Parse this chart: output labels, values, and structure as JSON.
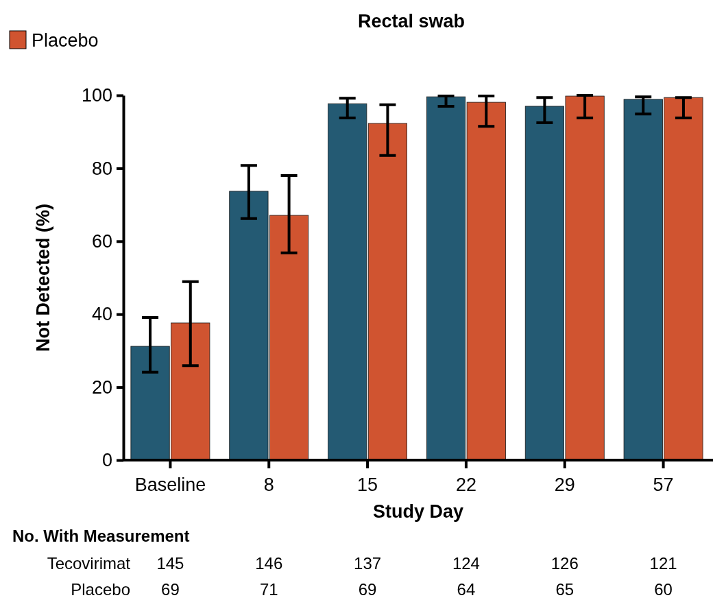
{
  "chart_data": {
    "type": "bar",
    "title": "Rectal swab",
    "xlabel": "Study Day",
    "ylabel": "Not Detected (%)",
    "categories": [
      "Baseline",
      "8",
      "15",
      "22",
      "29",
      "57"
    ],
    "series": [
      {
        "color": "#245a73",
        "values": [
          31.2,
          73.7,
          97.7,
          99.6,
          97.0,
          98.9
        ],
        "errors": [
          [
            24.1,
            39.1
          ],
          [
            66.2,
            80.8
          ],
          [
            93.8,
            99.2
          ],
          [
            97.0,
            99.8
          ],
          [
            92.5,
            99.4
          ],
          [
            94.9,
            99.6
          ]
        ]
      },
      {
        "name": "Placebo",
        "color": "#d05430",
        "values": [
          37.6,
          67.1,
          92.3,
          98.1,
          99.8,
          99.4
        ],
        "errors": [
          [
            25.9,
            48.9
          ],
          [
            56.8,
            78.0
          ],
          [
            83.5,
            97.4
          ],
          [
            91.5,
            99.8
          ],
          [
            93.8,
            100
          ],
          [
            93.8,
            99.4
          ]
        ]
      }
    ],
    "ylim": [
      0,
      100
    ],
    "yticks": [
      0,
      20,
      40,
      60,
      80,
      100
    ],
    "grid": false,
    "legend": "top left",
    "annotations": [
      "No. With Measurement",
      "Tecovirimat",
      "145",
      "146",
      "137",
      "124",
      "126",
      "121",
      "Placebo",
      "69",
      "71",
      "69",
      "64",
      "65",
      "60"
    ]
  }
}
